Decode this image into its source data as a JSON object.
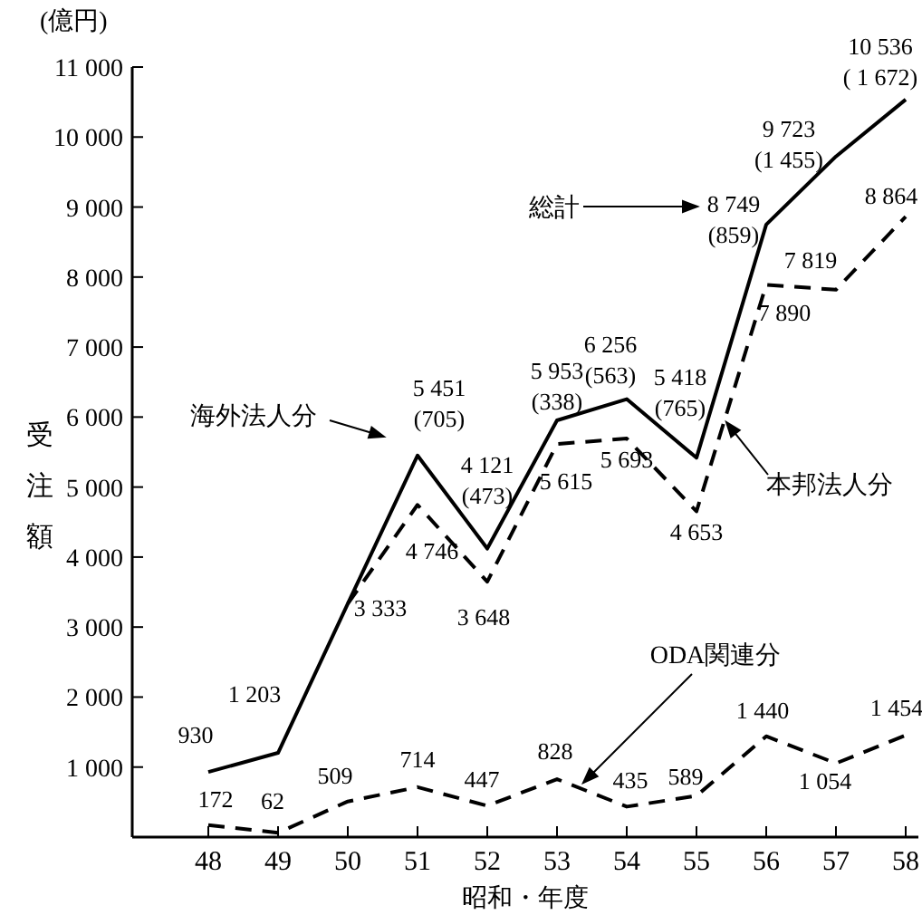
{
  "chart_data": {
    "type": "line",
    "xlabel": "昭和・年度",
    "ylabel": "受注額",
    "categories": [
      "48",
      "49",
      "50",
      "51",
      "52",
      "53",
      "54",
      "55",
      "56",
      "57",
      "58"
    ],
    "ylim": [
      0,
      11000
    ],
    "yticks": [
      {
        "value": 1000,
        "label": "1 000"
      },
      {
        "value": 2000,
        "label": "2 000"
      },
      {
        "value": 3000,
        "label": "3 000"
      },
      {
        "value": 4000,
        "label": "4 000"
      },
      {
        "value": 5000,
        "label": "5 000"
      },
      {
        "value": 6000,
        "label": "6 000"
      },
      {
        "value": 7000,
        "label": "7 000"
      },
      {
        "value": 8000,
        "label": "8 000"
      },
      {
        "value": 9000,
        "label": "9 000"
      },
      {
        "value": 10000,
        "label": "10 000"
      },
      {
        "value": 11000,
        "label": "11 000"
      }
    ],
    "grid": false,
    "legend": "top",
    "marker": "none",
    "series": [
      {
        "name": "総計",
        "color": "#000000",
        "line_style": "solid",
        "values": [
          930,
          1203,
          3333,
          5451,
          4121,
          5953,
          6256,
          5418,
          8749,
          9723,
          10536
        ],
        "value_labels": [
          "930",
          "1 203",
          null,
          "5 451\n(705)",
          "4 121\n(473)",
          "5 953\n(338)",
          "6 256\n(563)",
          "5 418\n(765)",
          "8 749\n(859)",
          "9 723\n(1 455)",
          "10 536\n( 1 672)"
        ]
      },
      {
        "name": "本邦法人分",
        "color": "#000000",
        "line_style": "dashed",
        "values": [
          null,
          null,
          3333,
          4746,
          3648,
          5615,
          5693,
          4653,
          7890,
          7819,
          8864
        ],
        "value_labels": [
          null,
          null,
          "3 333",
          "4 746",
          "3 648",
          "5 615",
          "5 693",
          "4 653",
          "7 890",
          "7 819",
          "8 864"
        ]
      },
      {
        "name": "ODA関連分",
        "color": "#000000",
        "line_style": "dashed",
        "values": [
          172,
          62,
          509,
          714,
          447,
          828,
          435,
          589,
          1440,
          1054,
          1454
        ],
        "value_labels": [
          "172",
          "62",
          "509",
          "714",
          "447",
          "828",
          "435",
          "589",
          "1 440",
          "1 054",
          "1 454"
        ]
      }
    ],
    "annotations": [
      "(億円)",
      "海外法人分"
    ]
  }
}
